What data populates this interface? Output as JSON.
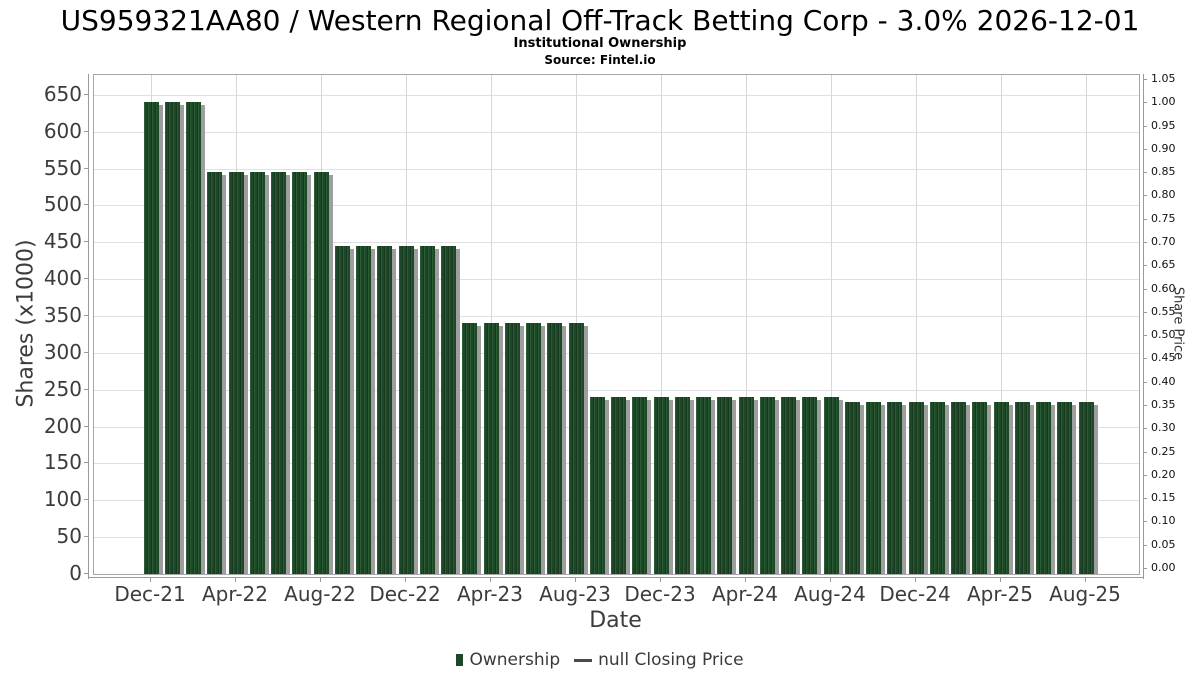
{
  "title": "US959321AA80 / Western Regional Off-Track Betting Corp - 3.0% 2026-12-01",
  "subtitle": "Institutional Ownership",
  "source": "Source: Fintel.io",
  "colors": {
    "bar": "#1d4827",
    "bar_stripe_light": "#2b5a35",
    "bar_stripe_dark": "#16391d",
    "bar_shadow": "#9e9e9e",
    "grid": "#e0e0e0",
    "grid_v": "#d6d6d6",
    "axis": "#9a9a9a",
    "frame": "#a6a6a6",
    "tick_text": "#3c3c3c",
    "title_text": "#000000"
  },
  "chart_data": {
    "type": "bar",
    "title": "US959321AA80 / Western Regional Off-Track Betting Corp - 3.0% 2026-12-01",
    "subtitle": "Institutional Ownership",
    "source": "Source: Fintel.io",
    "xlabel": "Date",
    "ylabel_left": "Shares (x1000)",
    "ylabel_right": "Share Price",
    "ylim_left": [
      0,
      650
    ],
    "ylim_right": [
      0.0,
      1.05
    ],
    "grid": true,
    "legend_position": "bottom-center",
    "x": [
      "Dec-21",
      "Jan-22",
      "Feb-22",
      "Mar-22",
      "Apr-22",
      "May-22",
      "Jun-22",
      "Jul-22",
      "Aug-22",
      "Sep-22",
      "Oct-22",
      "Nov-22",
      "Dec-22",
      "Jan-23",
      "Feb-23",
      "Mar-23",
      "Apr-23",
      "May-23",
      "Jun-23",
      "Jul-23",
      "Aug-23",
      "Sep-23",
      "Oct-23",
      "Nov-23",
      "Dec-23",
      "Jan-24",
      "Feb-24",
      "Mar-24",
      "Apr-24",
      "May-24",
      "Jun-24",
      "Jul-24",
      "Aug-24",
      "Sep-24",
      "Oct-24",
      "Nov-24",
      "Dec-24",
      "Jan-25",
      "Feb-25",
      "Mar-25",
      "Apr-25",
      "May-25",
      "Jun-25",
      "Jul-25",
      "Aug-25"
    ],
    "values": [
      640,
      640,
      640,
      545,
      545,
      545,
      545,
      545,
      545,
      445,
      445,
      445,
      445,
      445,
      445,
      340,
      340,
      340,
      340,
      340,
      340,
      240,
      240,
      240,
      240,
      240,
      240,
      240,
      240,
      240,
      240,
      240,
      240,
      234,
      234,
      234,
      234,
      234,
      234,
      234,
      234,
      234,
      234,
      234,
      234
    ],
    "series_name": "Ownership (Shares x1000)",
    "x_tick_labels": [
      "Dec-21",
      "Apr-22",
      "Aug-22",
      "Dec-22",
      "Apr-23",
      "Aug-23",
      "Dec-23",
      "Apr-24",
      "Aug-24",
      "Dec-24",
      "Apr-25",
      "Aug-25"
    ],
    "y_left_ticks": [
      0,
      50,
      100,
      150,
      200,
      250,
      300,
      350,
      400,
      450,
      500,
      550,
      600,
      650
    ],
    "y_right_ticks": [
      "0.00",
      "0.05",
      "0.10",
      "0.15",
      "0.20",
      "0.25",
      "0.30",
      "0.35",
      "0.40",
      "0.45",
      "0.50",
      "0.55",
      "0.60",
      "0.65",
      "0.70",
      "0.75",
      "0.80",
      "0.85",
      "0.90",
      "0.95",
      "1.00",
      "1.05"
    ],
    "legend": [
      {
        "label": "Ownership",
        "marker": "bar-swatch-icon"
      },
      {
        "label": "null Closing Price",
        "marker": "line-swatch-icon"
      }
    ]
  }
}
